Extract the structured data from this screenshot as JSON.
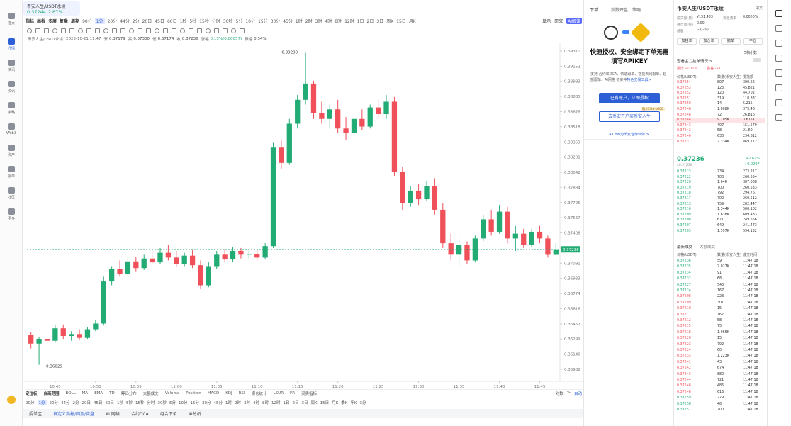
{
  "sidebar": {
    "items": [
      "首页",
      "行情",
      "快讯",
      "资讯",
      "策略",
      "Web3",
      "资产",
      "跟单",
      "社区",
      "更多"
    ]
  },
  "tab": {
    "symbol": "币安人生/USDT永续",
    "price": "0.37244",
    "change": "2.67%"
  },
  "toolbar": {
    "tools": [
      "指标",
      "画板",
      "多屏",
      "复盘",
      "周期"
    ],
    "intervals": [
      "90分",
      "1分",
      "20分",
      "44分",
      "2分",
      "20日",
      "45日",
      "60日",
      "1秒",
      "5秒",
      "15秒",
      "分时",
      "30秒",
      "5分",
      "10分",
      "15分",
      "30分",
      "45分",
      "1时",
      "2时",
      "3时",
      "4时",
      "8时",
      "12时",
      "1日",
      "2日",
      "3日",
      "周K",
      "15日",
      "月K"
    ],
    "active": 1,
    "right": [
      "显示",
      "研究",
      "AI解读"
    ]
  },
  "info": {
    "symbol": "币安人生/USDT永续",
    "time": "2025-10-21 11:47",
    "fields": [
      [
        "开",
        "0.37179"
      ],
      [
        "高",
        "0.37300"
      ],
      [
        "低",
        "0.37174"
      ],
      [
        "收",
        "0.37236"
      ],
      [
        "涨幅",
        "0.15%(0.00057)"
      ],
      [
        "振幅",
        "0.34%"
      ]
    ]
  },
  "chart_data": {
    "type": "candlestick",
    "categories": [
      null,
      null,
      null,
      "10:45",
      null,
      null,
      null,
      null,
      "10:50",
      null,
      null,
      null,
      null,
      "10:55",
      null,
      null,
      null,
      null,
      "11:00",
      null,
      null,
      null,
      null,
      "11:05",
      null,
      null,
      null,
      null,
      "11:10",
      null,
      null,
      null,
      null,
      "11:15",
      null,
      null,
      null,
      null,
      "11:20",
      null,
      null,
      null,
      null,
      "11:25",
      null,
      null,
      null,
      null,
      "11:30",
      null,
      null,
      null,
      null,
      "11:35",
      null,
      null,
      null,
      null,
      "11:40",
      null,
      null,
      null,
      null,
      "11:45",
      null,
      null
    ],
    "open": [
      0.3634,
      0.3625,
      0.363,
      0.3628,
      0.3641,
      0.3633,
      0.3635,
      0.3631,
      0.364,
      0.3646,
      0.369,
      0.3703,
      0.3698,
      0.3711,
      0.3704,
      0.3714,
      0.371,
      0.372,
      0.3715,
      0.3708,
      0.3717,
      0.3707,
      0.3686,
      0.3706,
      0.3718,
      0.3713,
      0.3722,
      0.3718,
      0.3719,
      0.3715,
      0.3727,
      0.383,
      0.3814,
      0.3855,
      0.388,
      0.3897,
      0.3866,
      0.386,
      0.387,
      0.385,
      0.3845,
      0.386,
      0.3852,
      0.3872,
      0.3865,
      0.3878,
      0.3805,
      0.3772,
      0.3785,
      0.3776,
      0.379,
      0.3765,
      0.373,
      0.3718,
      0.3728,
      0.3712,
      0.3735,
      0.3755,
      0.3742,
      0.3763,
      0.3735,
      0.374,
      0.3728,
      0.3742,
      0.3735,
      0.37179
    ],
    "high": [
      0.3637,
      0.3632,
      0.364,
      0.3645,
      0.3645,
      0.3638,
      0.364,
      0.3642,
      0.365,
      0.3695,
      0.3706,
      0.3712,
      0.3715,
      0.3716,
      0.3718,
      0.3722,
      0.3725,
      0.3728,
      0.3722,
      0.372,
      0.3723,
      0.3712,
      0.371,
      0.3722,
      0.3724,
      0.3726,
      0.3725,
      0.3723,
      0.3724,
      0.373,
      0.3835,
      0.3838,
      0.386,
      0.3885,
      0.3929,
      0.39,
      0.3878,
      0.3875,
      0.388,
      0.3862,
      0.3866,
      0.387,
      0.3875,
      0.388,
      0.3885,
      0.3883,
      0.381,
      0.379,
      0.3792,
      0.3795,
      0.3798,
      0.3772,
      0.374,
      0.3735,
      0.3732,
      0.3738,
      0.376,
      0.3765,
      0.377,
      0.3768,
      0.3748,
      0.3745,
      0.3745,
      0.3748,
      0.3738,
      0.373
    ],
    "low": [
      0.362,
      0.36029,
      0.3626,
      0.3626,
      0.363,
      0.3628,
      0.3629,
      0.363,
      0.3638,
      0.3644,
      0.3686,
      0.3695,
      0.3696,
      0.37,
      0.3702,
      0.3708,
      0.3708,
      0.3712,
      0.3705,
      0.3706,
      0.3704,
      0.3682,
      0.3684,
      0.3703,
      0.371,
      0.371,
      0.3714,
      0.3713,
      0.3712,
      0.3713,
      0.3725,
      0.3808,
      0.3812,
      0.385,
      0.3875,
      0.386,
      0.3855,
      0.385,
      0.3845,
      0.3838,
      0.384,
      0.3848,
      0.385,
      0.386,
      0.386,
      0.38,
      0.3765,
      0.3768,
      0.377,
      0.3774,
      0.376,
      0.3725,
      0.3712,
      0.3705,
      0.3708,
      0.371,
      0.3732,
      0.3738,
      0.374,
      0.373,
      0.3722,
      0.3725,
      0.3726,
      0.373,
      0.3715,
      0.37174
    ],
    "close": [
      0.3625,
      0.363,
      0.3628,
      0.3641,
      0.3633,
      0.3635,
      0.3631,
      0.364,
      0.3646,
      0.369,
      0.3703,
      0.3698,
      0.3711,
      0.3704,
      0.3714,
      0.371,
      0.372,
      0.3715,
      0.3708,
      0.3717,
      0.3707,
      0.3686,
      0.3706,
      0.3718,
      0.3713,
      0.3722,
      0.3718,
      0.3719,
      0.3715,
      0.3727,
      0.383,
      0.3814,
      0.3855,
      0.388,
      0.3897,
      0.3866,
      0.386,
      0.387,
      0.385,
      0.3845,
      0.386,
      0.3852,
      0.3872,
      0.3865,
      0.3878,
      0.3805,
      0.3772,
      0.3785,
      0.3776,
      0.379,
      0.3765,
      0.373,
      0.3718,
      0.3728,
      0.3712,
      0.3735,
      0.3755,
      0.3742,
      0.3763,
      0.3735,
      0.374,
      0.3728,
      0.3742,
      0.3735,
      0.37179,
      0.37236
    ],
    "colors": {
      "up": "#22ab74",
      "down": "#f0505a"
    },
    "ylim": [
      0.359,
      0.39384
    ],
    "yticks": [
      {
        "value": 0.3931,
        "label": "0.39310"
      },
      {
        "value": 0.39152,
        "label": "0.39152"
      },
      {
        "value": 0.38993,
        "label": "0.38993"
      },
      {
        "value": 0.38835,
        "label": "0.38835"
      },
      {
        "value": 0.38676,
        "label": "0.38676"
      },
      {
        "value": 0.38518,
        "label": "0.38518"
      },
      {
        "value": 0.38359,
        "label": "0.38359"
      },
      {
        "value": 0.38201,
        "label": "0.38201"
      },
      {
        "value": 0.38042,
        "label": "0.38042"
      },
      {
        "value": 0.37884,
        "label": "0.37884"
      },
      {
        "value": 0.37725,
        "label": "0.37725"
      },
      {
        "value": 0.37567,
        "label": "0.37567"
      },
      {
        "value": 0.37408,
        "label": "0.37408"
      },
      {
        "value": 0.3725,
        "label": "0.37250"
      },
      {
        "value": 0.37091,
        "label": "0.37091"
      },
      {
        "value": 0.36933,
        "label": "0.36933"
      },
      {
        "value": 0.36774,
        "label": "0.36774"
      },
      {
        "value": 0.36616,
        "label": "0.36616"
      },
      {
        "value": 0.36457,
        "label": "0.36457"
      },
      {
        "value": 0.36299,
        "label": "0.36299"
      },
      {
        "value": 0.3614,
        "label": "0.36140"
      },
      {
        "value": 0.35982,
        "label": "0.35982"
      }
    ],
    "grid": false,
    "max_label": "0.39290",
    "min_label": "0.36029",
    "last_price": {
      "value": 0.37236,
      "label": "0.37236"
    }
  },
  "indicator_bar": {
    "items": [
      "定位板",
      "自画范围",
      "BOLL",
      "MA",
      "EMA",
      "TD",
      "筹码分布",
      "大额成交",
      "Volume",
      "Position",
      "MACD",
      "KDJ",
      "RSI",
      "爆仓统计",
      "LSUR",
      "FR",
      "买卖指标"
    ],
    "right": [
      "对数",
      "%",
      "自动"
    ]
  },
  "timeframes": {
    "items": [
      "90分",
      "1分",
      "20分",
      "44分",
      "2分",
      "20日",
      "45日",
      "60日",
      "1秒",
      "5秒",
      "15秒",
      "分时",
      "30秒",
      "5分",
      "10分",
      "15分",
      "30分",
      "45分",
      "1时",
      "2时",
      "3时",
      "4时",
      "8时",
      "12时",
      "1日",
      "2日",
      "3日",
      "周K",
      "15日",
      "月K",
      "季K",
      "年K",
      "3分"
    ],
    "active": 1
  },
  "bottom_tabs": {
    "items": [
      "委单区",
      "自定义指标/回测/实盘",
      "AI 网格",
      "合约DCA",
      "组合下单",
      "AI分析"
    ],
    "active": 1
  },
  "order_panel": {
    "tabs": [
      "下单",
      "指数开盘",
      "策略"
    ],
    "headline": "快速授权、安全绑定下单无需填写APIKEY",
    "desc": "支持 合约和DCA、快速跟单、智能天网跟单、超额跟单、AI网格 链束神",
    "link": "特色交易工具>",
    "primary": "已有账户，立即授权",
    "badge": "返10%+$600",
    "secondary": "去币安开户买币安人生",
    "footer": "AiCoin为币安合作伙伴 >"
  },
  "book": {
    "title": "币安人生/USDT永续",
    "lang": "中文",
    "stats": [
      [
        "成交额(量)",
        "¥151,433"
      ],
      [
        "资金费率",
        "0.0000%"
      ],
      [
        "持仓量(张)",
        "0.00"
      ],
      [
        "基差",
        "-- (--%)"
      ]
    ],
    "buttons": [
      "加挂单",
      "加仓单",
      "撤单",
      "平仓"
    ],
    "depth": "5档小数",
    "main_orders": "查看主力挂单情况 >",
    "ratio": "委比 -0.01%",
    "diff": "委差 -577",
    "headers": [
      "价格(USDT)",
      "数量(币安人生)",
      "委托额"
    ],
    "asks": [
      [
        "0.37254",
        "807",
        "300.66"
      ],
      [
        "0.37253",
        "123",
        "45.821"
      ],
      [
        "0.37252",
        "120",
        "44.702"
      ],
      [
        "0.37251",
        "319",
        "118.831"
      ],
      [
        "0.37250",
        "14",
        "5.215"
      ],
      [
        "0.37248",
        "1.008K",
        "375.46"
      ],
      [
        "0.37246",
        "72",
        "26.816"
      ],
      [
        "0.37244",
        "9.705K",
        "3.615K"
      ],
      [
        "0.37243",
        "407",
        "151.579"
      ],
      [
        "0.37242",
        "58",
        "21.60"
      ],
      [
        "0.37240",
        "630",
        "234.612"
      ],
      [
        "0.37237",
        "2.334K",
        "869.112"
      ]
    ],
    "highlight": 7,
    "last": {
      "price": "0.37236",
      "change": "+2.67%",
      "sub": "$0.37236",
      "delta": "+0.0097"
    },
    "bids": [
      [
        "0.37223",
        "734",
        "273.217"
      ],
      [
        "0.37222",
        "700",
        "260.554"
      ],
      [
        "0.37220",
        "1.04K",
        "387.088"
      ],
      [
        "0.37219",
        "700",
        "260.533"
      ],
      [
        "0.37218",
        "792",
        "294.767"
      ],
      [
        "0.37217",
        "700",
        "260.512"
      ],
      [
        "0.37213",
        "759",
        "282.447"
      ],
      [
        "0.37210",
        "1.344K",
        "500.102"
      ],
      [
        "0.37209",
        "1.638K",
        "609.483"
      ],
      [
        "0.37208",
        "671",
        "249.666"
      ],
      [
        "0.37207",
        "649",
        "241.473"
      ],
      [
        "0.37203",
        "1.597K",
        "594.132"
      ]
    ],
    "trade_tabs": [
      "最新成交",
      "大额成交"
    ],
    "trade_headers": [
      "价格(USDT)",
      "数量(币安人生)",
      "成交时间"
    ],
    "trades": [
      [
        "0.37236",
        "59",
        "11:47:18",
        "up"
      ],
      [
        "0.37235",
        "2.027K",
        "11:47:18",
        "up"
      ],
      [
        "0.37234",
        "91",
        "11:47:18",
        "up"
      ],
      [
        "0.37232",
        "68",
        "11:47:18",
        "up"
      ],
      [
        "0.37227",
        "540",
        "11:47:18",
        "up"
      ],
      [
        "0.37224",
        "167",
        "11:47:18",
        "up"
      ],
      [
        "0.37208",
        "223",
        "11:47:18",
        "down"
      ],
      [
        "0.37209",
        "301",
        "11:47:18",
        "down"
      ],
      [
        "0.37210",
        "15",
        "11:47:18",
        "down"
      ],
      [
        "0.37211",
        "167",
        "11:47:18",
        "down"
      ],
      [
        "0.37212",
        "58",
        "11:47:18",
        "down"
      ],
      [
        "0.37215",
        "75",
        "11:47:18",
        "down"
      ],
      [
        "0.37218",
        "1.066K",
        "11:47:18",
        "down"
      ],
      [
        "0.37220",
        "15",
        "11:47:18",
        "down"
      ],
      [
        "0.37223",
        "792",
        "11:47:18",
        "down"
      ],
      [
        "0.37224",
        "60",
        "11:47:18",
        "down"
      ],
      [
        "0.37233",
        "1.223K",
        "11:47:18",
        "down"
      ],
      [
        "0.37241",
        "43",
        "11:47:18",
        "down"
      ],
      [
        "0.37242",
        "674",
        "11:47:18",
        "down"
      ],
      [
        "0.37243",
        "680",
        "11:47:18",
        "down"
      ],
      [
        "0.37244",
        "721",
        "11:47:18",
        "down"
      ],
      [
        "0.37246",
        "485",
        "11:47:18",
        "down"
      ],
      [
        "0.37248",
        "616",
        "11:47:18",
        "down"
      ],
      [
        "0.37259",
        "279",
        "11:47:18",
        "up"
      ],
      [
        "0.37258",
        "46",
        "11:47:18",
        "up"
      ],
      [
        "0.37257",
        "700",
        "11:47:18",
        "up"
      ]
    ]
  }
}
